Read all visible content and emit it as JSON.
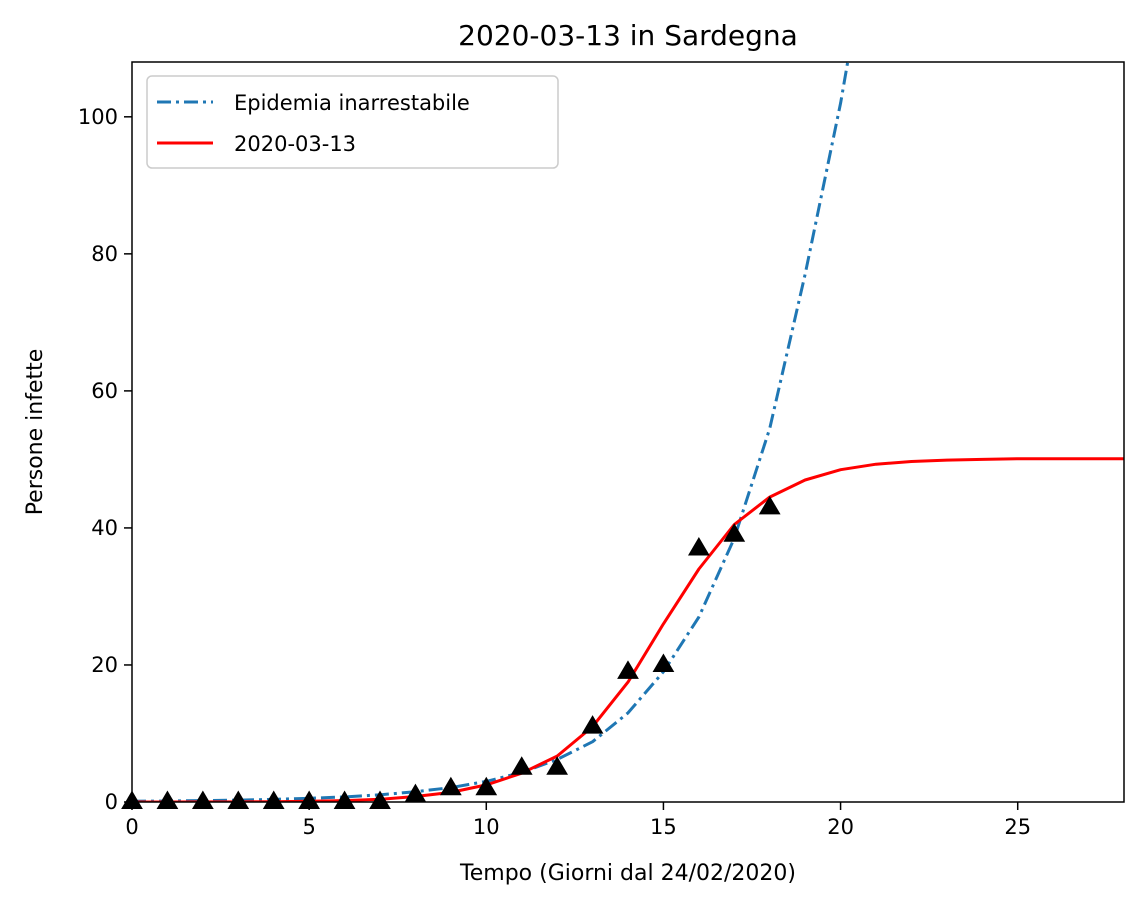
{
  "chart_data": {
    "type": "line",
    "title": "2020-03-13 in Sardegna",
    "xlabel": "Tempo (Giorni dal 24/02/2020)",
    "ylabel": "Persone infette",
    "xlim": [
      0,
      28
    ],
    "ylim": [
      0,
      108
    ],
    "xticks": [
      0,
      5,
      10,
      15,
      20,
      25
    ],
    "yticks": [
      0,
      20,
      40,
      60,
      80,
      100
    ],
    "grid": false,
    "legend_position": "top-left",
    "series": [
      {
        "name": "Epidemia inarrestabile",
        "style": "dashdot",
        "color": "#1f77b4",
        "x": [
          0,
          1,
          2,
          3,
          4,
          5,
          6,
          7,
          8,
          9,
          10,
          11,
          12,
          13,
          14,
          15,
          16,
          17,
          18,
          19,
          20,
          20.2
        ],
        "y": [
          0.1,
          0.14,
          0.2,
          0.28,
          0.38,
          0.54,
          0.75,
          1.05,
          1.5,
          2.1,
          3.0,
          4.3,
          6.2,
          8.8,
          13.0,
          19.0,
          27.0,
          38.5,
          54.5,
          77.0,
          102.0,
          108.0
        ]
      },
      {
        "name": "2020-03-13",
        "style": "solid",
        "color": "#ff0000",
        "x": [
          0,
          1,
          2,
          3,
          4,
          5,
          6,
          7,
          8,
          9,
          10,
          11,
          12,
          13,
          14,
          15,
          16,
          17,
          18,
          19,
          20,
          21,
          22,
          23,
          24,
          25,
          26,
          27,
          28
        ],
        "y": [
          0.0,
          0.0,
          0.01,
          0.02,
          0.05,
          0.1,
          0.2,
          0.4,
          0.8,
          1.4,
          2.5,
          4.2,
          6.7,
          11.0,
          17.5,
          26.0,
          34.0,
          40.5,
          44.5,
          47.0,
          48.5,
          49.3,
          49.7,
          49.9,
          50.0,
          50.1,
          50.1,
          50.1,
          50.1
        ]
      },
      {
        "name": "",
        "style": "markers",
        "marker": "triangle",
        "color": "#000000",
        "x": [
          0,
          1,
          2,
          3,
          4,
          5,
          6,
          7,
          8,
          9,
          10,
          11,
          12,
          13,
          14,
          15,
          16,
          17,
          18
        ],
        "y": [
          0,
          0,
          0,
          0,
          0,
          0,
          0,
          0,
          1,
          2,
          2,
          5,
          5,
          11,
          19,
          20,
          37,
          39,
          43
        ]
      }
    ]
  }
}
